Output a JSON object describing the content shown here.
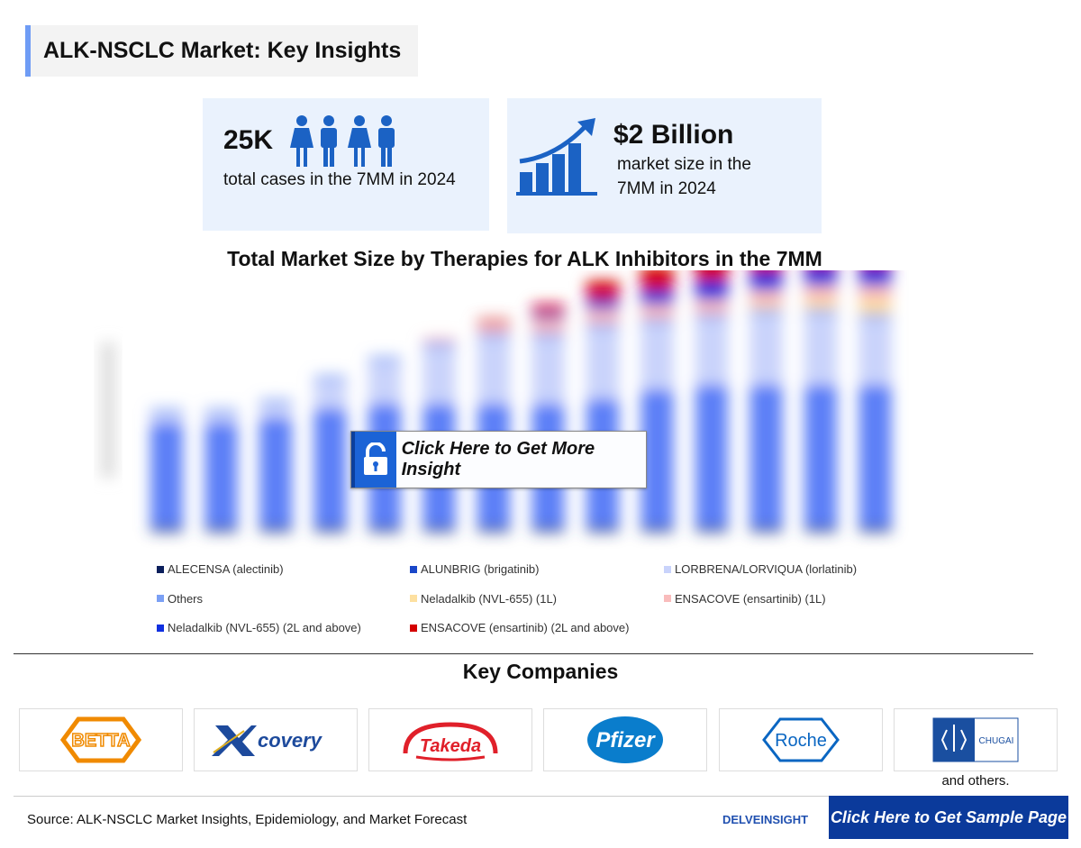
{
  "header": {
    "title": "ALK-NSCLC Market: Key Insights"
  },
  "cards": [
    {
      "value": "25K",
      "text": "total cases in the 7MM in 2024",
      "icon": "people-icon"
    },
    {
      "value": "$2 Billion",
      "text_line1": "market size in the",
      "text_line2": "7MM in 2024",
      "icon": "growth-chart-icon"
    }
  ],
  "chart_data": {
    "type": "bar",
    "stacked": true,
    "title": "Total Market Size by Therapies for ALK Inhibitors in the 7MM",
    "note": "values approximate; chart is blurred and has no readable axis",
    "grid": false,
    "legend_position": "bottom",
    "series": [
      {
        "name": "ALECENSA (alectinib)",
        "color": "#0b1f5c",
        "values": [
          5,
          5,
          5,
          5,
          5,
          5,
          5,
          5,
          5,
          5,
          5,
          5,
          5,
          5
        ]
      },
      {
        "name": "ALUNBRIG (brigatinib)",
        "color": "#1a47c9",
        "values": [
          110,
          110,
          115,
          125,
          130,
          130,
          130,
          130,
          135,
          145,
          150,
          150,
          150,
          150
        ]
      },
      {
        "name": "LORBRENA/LORVIQUA (lorlatinib)",
        "color": "#c9d3fb",
        "values": [
          10,
          10,
          15,
          30,
          45,
          60,
          70,
          70,
          75,
          70,
          70,
          75,
          75,
          70
        ]
      },
      {
        "name": "Others",
        "color": "#7ba0f5",
        "values": [
          5,
          5,
          5,
          5,
          5,
          5,
          5,
          5,
          5,
          5,
          5,
          5,
          5,
          5
        ]
      },
      {
        "name": "Neladalkib (NVL-655) (1L)",
        "color": "#fde0a0",
        "values": [
          0,
          0,
          0,
          0,
          0,
          0,
          0,
          0,
          0,
          0,
          0,
          5,
          10,
          15
        ]
      },
      {
        "name": "ENSACOVE (ensartinib) (1L)",
        "color": "#f9bcbc",
        "values": [
          0,
          0,
          0,
          0,
          0,
          5,
          10,
          15,
          15,
          15,
          15,
          15,
          15,
          15
        ]
      },
      {
        "name": "Neladalkib (NVL-655) (2L and above)",
        "color": "#1030e0",
        "values": [
          0,
          0,
          0,
          0,
          0,
          0,
          0,
          5,
          10,
          15,
          20,
          20,
          20,
          20
        ]
      },
      {
        "name": "ENSACOVE (ensartinib) (2L and above)",
        "color": "#d40000",
        "values": [
          0,
          0,
          0,
          0,
          0,
          0,
          5,
          10,
          20,
          25,
          30,
          30,
          30,
          30
        ]
      }
    ]
  },
  "insight_button": {
    "label": "Click Here to Get More Insight",
    "icon": "unlock-icon"
  },
  "companies": {
    "title": "Key Companies",
    "logos": [
      "BETTA",
      "Xcovery",
      "Takeda",
      "Pfizer",
      "Roche",
      "CHUGAI"
    ],
    "more": "and others."
  },
  "footer": {
    "source": "Source: ALK-NSCLC Market Insights, Epidemiology, and Market Forecast",
    "brand": "DELVEINSIGHT",
    "sample_button": "Click Here to Get Sample Page"
  }
}
